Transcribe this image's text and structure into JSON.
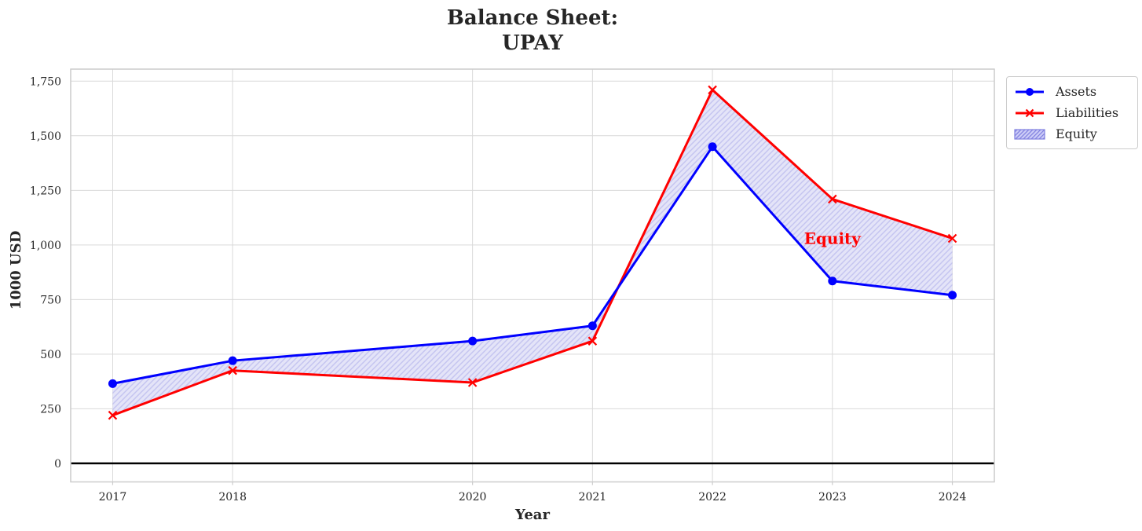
{
  "figure": {
    "background": "#ffffff",
    "text_color": "#262626",
    "grid_color": "#d9d9d9",
    "frame_color": "#cccccc"
  },
  "chart_data": {
    "type": "line",
    "title": "Balance Sheet:\nUPAY",
    "title_lines": [
      "Balance Sheet:",
      "UPAY"
    ],
    "xlabel": "Year",
    "ylabel": "1000 USD",
    "x": [
      2017,
      2018,
      2020,
      2021,
      2022,
      2023,
      2024
    ],
    "series": [
      {
        "name": "Assets",
        "color": "#0000ff",
        "marker": "circle",
        "line_width": 3,
        "values": [
          365,
          470,
          560,
          630,
          1450,
          835,
          770
        ]
      },
      {
        "name": "Liabilities",
        "color": "#ff0000",
        "marker": "x",
        "line_width": 3,
        "values": [
          220,
          425,
          370,
          560,
          1710,
          1210,
          1030
        ]
      }
    ],
    "band": {
      "name": "Equity",
      "between": [
        "Assets",
        "Liabilities"
      ],
      "fill_color": "#e4e4f8",
      "hatch": "/",
      "hatch_color": "#c5c5f0"
    },
    "annotation": {
      "text": "Equity",
      "x": 2023,
      "y": 1030,
      "color": "#ff0000"
    },
    "xticks": [
      2017,
      2018,
      2020,
      2021,
      2022,
      2023,
      2024
    ],
    "xtick_labels": [
      "2017",
      "2018",
      "2020",
      "2021",
      "2022",
      "2023",
      "2024"
    ],
    "yticks": [
      0,
      250,
      500,
      750,
      1000,
      1250,
      1500,
      1750
    ],
    "ytick_labels": [
      "0",
      "250",
      "500",
      "750",
      "1,000",
      "1,250",
      "1,500",
      "1,750"
    ],
    "xlim": [
      2016.65,
      2024.35
    ],
    "ylim": [
      -85,
      1805
    ],
    "grid": true,
    "zero_line": true,
    "legend": {
      "position": "outside-top-right",
      "entries": [
        "Assets",
        "Liabilities",
        "Equity"
      ]
    }
  }
}
